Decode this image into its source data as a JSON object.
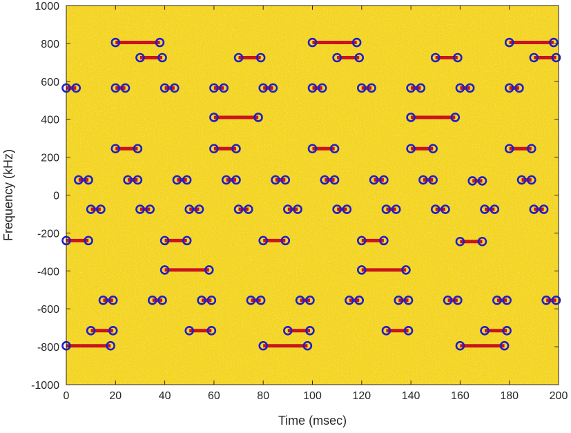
{
  "chart_data": {
    "type": "scatter",
    "title": "",
    "xlabel": "Time (msec)",
    "ylabel": "Frequency (kHz)",
    "xlim": [
      0,
      200
    ],
    "ylim": [
      -1000,
      1000
    ],
    "xticks": [
      0,
      20,
      40,
      60,
      80,
      100,
      120,
      140,
      160,
      180,
      200
    ],
    "yticks": [
      1000,
      800,
      600,
      400,
      200,
      0,
      -200,
      -400,
      -600,
      -800,
      -1000
    ],
    "grid": false,
    "background": "noisy spectrogram",
    "colors": {
      "background": "#f2d21c",
      "noise_light": "#f7e96b",
      "noise_orange": "#f0a51a",
      "segment_line": "#c8141e",
      "marker": "#1d1fc9",
      "axis": "#262626"
    },
    "segments": [
      {
        "t_start": 20,
        "t_end": 38,
        "freq": 805
      },
      {
        "t_start": 30,
        "t_end": 39,
        "freq": 725
      },
      {
        "t_start": 100,
        "t_end": 118,
        "freq": 805
      },
      {
        "t_start": 110,
        "t_end": 119,
        "freq": 725
      },
      {
        "t_start": 180,
        "t_end": 198,
        "freq": 805
      },
      {
        "t_start": 190,
        "t_end": 199,
        "freq": 725
      },
      {
        "t_start": 70,
        "t_end": 79,
        "freq": 725
      },
      {
        "t_start": 150,
        "t_end": 159,
        "freq": 725
      },
      {
        "t_start": 0,
        "t_end": 4,
        "freq": 565
      },
      {
        "t_start": 20,
        "t_end": 24,
        "freq": 565
      },
      {
        "t_start": 40,
        "t_end": 44,
        "freq": 565
      },
      {
        "t_start": 60,
        "t_end": 64,
        "freq": 565
      },
      {
        "t_start": 80,
        "t_end": 84,
        "freq": 565
      },
      {
        "t_start": 100,
        "t_end": 104,
        "freq": 565
      },
      {
        "t_start": 120,
        "t_end": 124,
        "freq": 565
      },
      {
        "t_start": 140,
        "t_end": 144,
        "freq": 565
      },
      {
        "t_start": 160,
        "t_end": 164,
        "freq": 565
      },
      {
        "t_start": 180,
        "t_end": 184,
        "freq": 565
      },
      {
        "t_start": 60,
        "t_end": 78,
        "freq": 410
      },
      {
        "t_start": 140,
        "t_end": 158,
        "freq": 410
      },
      {
        "t_start": 20,
        "t_end": 29,
        "freq": 245
      },
      {
        "t_start": 60,
        "t_end": 69,
        "freq": 245
      },
      {
        "t_start": 100,
        "t_end": 109,
        "freq": 245
      },
      {
        "t_start": 140,
        "t_end": 149,
        "freq": 245
      },
      {
        "t_start": 180,
        "t_end": 189,
        "freq": 245
      },
      {
        "t_start": 5,
        "t_end": 9,
        "freq": 80
      },
      {
        "t_start": 25,
        "t_end": 29,
        "freq": 80
      },
      {
        "t_start": 45,
        "t_end": 49,
        "freq": 80
      },
      {
        "t_start": 65,
        "t_end": 69,
        "freq": 80
      },
      {
        "t_start": 85,
        "t_end": 89,
        "freq": 80
      },
      {
        "t_start": 105,
        "t_end": 109,
        "freq": 80
      },
      {
        "t_start": 125,
        "t_end": 129,
        "freq": 80
      },
      {
        "t_start": 145,
        "t_end": 149,
        "freq": 80
      },
      {
        "t_start": 165,
        "t_end": 169,
        "freq": 75
      },
      {
        "t_start": 185,
        "t_end": 189,
        "freq": 80
      },
      {
        "t_start": 10,
        "t_end": 14,
        "freq": -75
      },
      {
        "t_start": 30,
        "t_end": 34,
        "freq": -75
      },
      {
        "t_start": 50,
        "t_end": 54,
        "freq": -75
      },
      {
        "t_start": 70,
        "t_end": 74,
        "freq": -75
      },
      {
        "t_start": 90,
        "t_end": 94,
        "freq": -75
      },
      {
        "t_start": 110,
        "t_end": 114,
        "freq": -75
      },
      {
        "t_start": 130,
        "t_end": 134,
        "freq": -75
      },
      {
        "t_start": 150,
        "t_end": 154,
        "freq": -75
      },
      {
        "t_start": 170,
        "t_end": 174,
        "freq": -75
      },
      {
        "t_start": 190,
        "t_end": 194,
        "freq": -75
      },
      {
        "t_start": 0,
        "t_end": 9,
        "freq": -240
      },
      {
        "t_start": 40,
        "t_end": 49,
        "freq": -240
      },
      {
        "t_start": 80,
        "t_end": 89,
        "freq": -240
      },
      {
        "t_start": 120,
        "t_end": 129,
        "freq": -240
      },
      {
        "t_start": 160,
        "t_end": 169,
        "freq": -245
      },
      {
        "t_start": 40,
        "t_end": 58,
        "freq": -395
      },
      {
        "t_start": 120,
        "t_end": 138,
        "freq": -395
      },
      {
        "t_start": 15,
        "t_end": 19,
        "freq": -555
      },
      {
        "t_start": 35,
        "t_end": 39,
        "freq": -555
      },
      {
        "t_start": 55,
        "t_end": 59,
        "freq": -555
      },
      {
        "t_start": 75,
        "t_end": 79,
        "freq": -555
      },
      {
        "t_start": 95,
        "t_end": 99,
        "freq": -555
      },
      {
        "t_start": 115,
        "t_end": 119,
        "freq": -555
      },
      {
        "t_start": 135,
        "t_end": 139,
        "freq": -555
      },
      {
        "t_start": 155,
        "t_end": 159,
        "freq": -555
      },
      {
        "t_start": 175,
        "t_end": 179,
        "freq": -555
      },
      {
        "t_start": 195,
        "t_end": 199,
        "freq": -555
      },
      {
        "t_start": 10,
        "t_end": 19,
        "freq": -715
      },
      {
        "t_start": 50,
        "t_end": 59,
        "freq": -715
      },
      {
        "t_start": 90,
        "t_end": 99,
        "freq": -715
      },
      {
        "t_start": 130,
        "t_end": 139,
        "freq": -715
      },
      {
        "t_start": 170,
        "t_end": 179,
        "freq": -715
      },
      {
        "t_start": 0,
        "t_end": 18,
        "freq": -795
      },
      {
        "t_start": 80,
        "t_end": 98,
        "freq": -795
      },
      {
        "t_start": 160,
        "t_end": 178,
        "freq": -795
      }
    ]
  }
}
